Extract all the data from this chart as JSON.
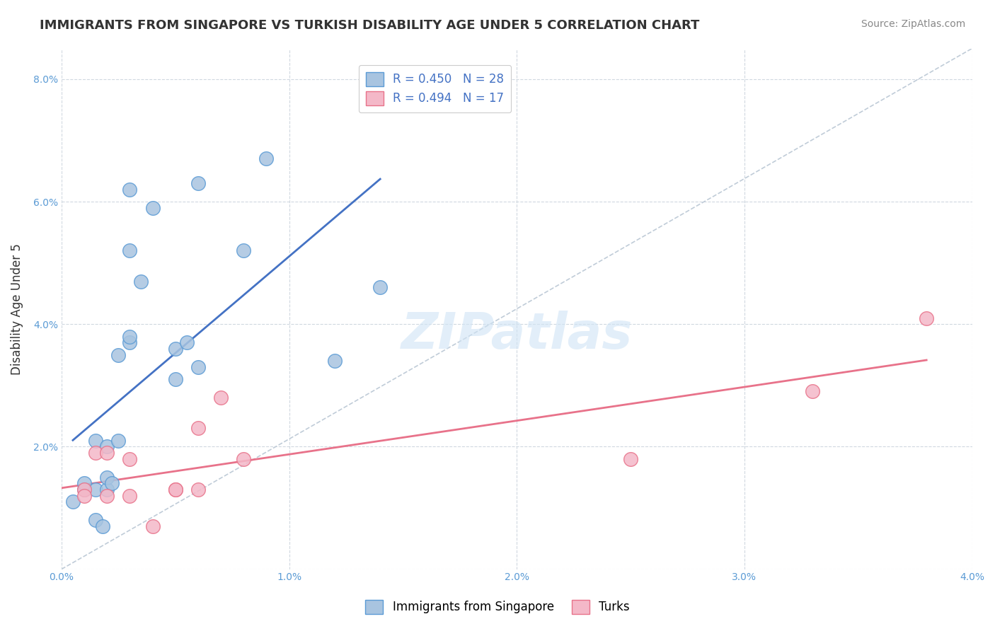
{
  "title": "IMMIGRANTS FROM SINGAPORE VS TURKISH DISABILITY AGE UNDER 5 CORRELATION CHART",
  "source": "Source: ZipAtlas.com",
  "ylabel": "Disability Age Under 5",
  "xlim": [
    0.0,
    0.04
  ],
  "ylim": [
    0.0,
    0.085
  ],
  "xticks": [
    0.0,
    0.01,
    0.02,
    0.03,
    0.04
  ],
  "yticks": [
    0.0,
    0.02,
    0.04,
    0.06,
    0.08
  ],
  "xtick_labels": [
    "0.0%",
    "1.0%",
    "2.0%",
    "3.0%",
    "4.0%"
  ],
  "ytick_labels": [
    "",
    "2.0%",
    "4.0%",
    "6.0%",
    "8.0%"
  ],
  "singapore_color": "#a8c4e0",
  "singapore_edge": "#5b9bd5",
  "turks_color": "#f4b8c8",
  "turks_edge": "#e8728a",
  "trendline_singapore_color": "#4472c4",
  "trendline_turks_color": "#e8728a",
  "diagonal_color": "#c0ccd8",
  "legend_r_singapore": "R = 0.450",
  "legend_n_singapore": "N = 28",
  "legend_r_turks": "R = 0.494",
  "legend_n_turks": "N = 17",
  "watermark": "ZIPatlas",
  "singapore_x": [
    0.0005,
    0.001,
    0.001,
    0.0015,
    0.0015,
    0.0015,
    0.0018,
    0.002,
    0.002,
    0.002,
    0.0022,
    0.0025,
    0.0025,
    0.003,
    0.003,
    0.003,
    0.003,
    0.0035,
    0.004,
    0.005,
    0.005,
    0.0055,
    0.006,
    0.006,
    0.008,
    0.009,
    0.012,
    0.014
  ],
  "singapore_y": [
    0.011,
    0.013,
    0.014,
    0.008,
    0.013,
    0.021,
    0.007,
    0.013,
    0.015,
    0.02,
    0.014,
    0.021,
    0.035,
    0.037,
    0.038,
    0.062,
    0.052,
    0.047,
    0.059,
    0.031,
    0.036,
    0.037,
    0.033,
    0.063,
    0.052,
    0.067,
    0.034,
    0.046
  ],
  "turks_x": [
    0.001,
    0.001,
    0.0015,
    0.002,
    0.002,
    0.003,
    0.003,
    0.004,
    0.005,
    0.005,
    0.006,
    0.006,
    0.007,
    0.008,
    0.025,
    0.033,
    0.038
  ],
  "turks_y": [
    0.013,
    0.012,
    0.019,
    0.019,
    0.012,
    0.018,
    0.012,
    0.007,
    0.013,
    0.013,
    0.013,
    0.023,
    0.028,
    0.018,
    0.018,
    0.029,
    0.041
  ]
}
